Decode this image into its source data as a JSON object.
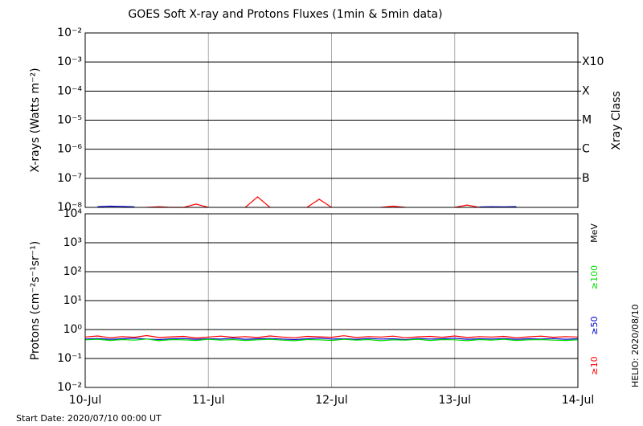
{
  "chart_data": [
    {
      "type": "line",
      "title": "GOES Soft X-ray and Protons Fluxes   (1min & 5min data)",
      "ylabel": "X-rays (Watts m⁻²)",
      "y2label": "Xray Class",
      "log_scale": true,
      "grid": true,
      "xlim": [
        0,
        4
      ],
      "xticks": [
        0,
        1,
        2,
        3,
        4
      ],
      "ylim": [
        1e-08,
        0.01
      ],
      "yticks": [
        {
          "value": 1e-08,
          "label": "10⁻⁸"
        },
        {
          "value": 1e-07,
          "label": "10⁻⁷"
        },
        {
          "value": 1e-06,
          "label": "10⁻⁶"
        },
        {
          "value": 1e-05,
          "label": "10⁻⁵"
        },
        {
          "value": 0.0001,
          "label": "10⁻⁴"
        },
        {
          "value": 0.001,
          "label": "10⁻³"
        },
        {
          "value": 0.01,
          "label": "10⁻²"
        }
      ],
      "y2lim": [
        1e-08,
        0.01
      ],
      "y2ticks": [
        {
          "value": 1e-07,
          "label": "B"
        },
        {
          "value": 1e-06,
          "label": "C"
        },
        {
          "value": 1e-05,
          "label": "M"
        },
        {
          "value": 0.0001,
          "label": "X"
        },
        {
          "value": 0.001,
          "label": "X10"
        }
      ],
      "x": [
        0,
        0.1,
        0.2,
        0.3,
        0.4,
        0.5,
        0.6,
        0.7,
        0.8,
        0.9,
        1,
        1.1,
        1.2,
        1.3,
        1.4,
        1.5,
        1.6,
        1.7,
        1.8,
        1.9,
        2,
        2.1,
        2.2,
        2.3,
        2.4,
        2.5,
        2.6,
        2.7,
        2.8,
        2.9,
        3,
        3.1,
        3.2,
        3.3,
        3.4,
        3.5,
        3.6,
        3.7,
        3.8,
        3.9,
        4
      ],
      "series": [
        {
          "color": "#ff0000",
          "values": [
            null,
            null,
            null,
            null,
            null,
            1e-08,
            1.05e-08,
            1e-08,
            1e-08,
            1.3e-08,
            1e-08,
            null,
            null,
            1e-08,
            2.3e-08,
            1e-08,
            null,
            null,
            1e-08,
            1.9e-08,
            1e-08,
            null,
            null,
            null,
            1e-08,
            1.1e-08,
            1e-08,
            null,
            null,
            null,
            1e-08,
            1.2e-08,
            1e-08,
            null,
            null,
            null,
            null,
            null,
            null,
            null,
            null
          ]
        },
        {
          "color": "#0000cc",
          "values": [
            null,
            1.05e-08,
            1.1e-08,
            1.08e-08,
            1.04e-08,
            null,
            null,
            null,
            null,
            null,
            null,
            null,
            null,
            null,
            null,
            null,
            null,
            null,
            null,
            null,
            null,
            null,
            null,
            null,
            null,
            null,
            null,
            null,
            null,
            null,
            null,
            null,
            1.03e-08,
            1.05e-08,
            1.04e-08,
            1.06e-08,
            null,
            null,
            null,
            null,
            null
          ]
        }
      ]
    },
    {
      "type": "line",
      "ylabel": "Protons (cm⁻²s⁻¹sr⁻¹)",
      "legend_title": "MeV",
      "log_scale": true,
      "grid": true,
      "xlim": [
        0,
        4
      ],
      "xticks": [
        {
          "value": 0,
          "label": "10-Jul"
        },
        {
          "value": 1,
          "label": "11-Jul"
        },
        {
          "value": 2,
          "label": "12-Jul"
        },
        {
          "value": 3,
          "label": "13-Jul"
        },
        {
          "value": 4,
          "label": "14-Jul"
        }
      ],
      "ylim": [
        0.01,
        10000
      ],
      "yticks": [
        {
          "value": 0.01,
          "label": "10⁻²"
        },
        {
          "value": 0.1,
          "label": "10⁻¹"
        },
        {
          "value": 1,
          "label": "10⁰"
        },
        {
          "value": 10,
          "label": "10¹"
        },
        {
          "value": 100,
          "label": "10²"
        },
        {
          "value": 1000,
          "label": "10³"
        },
        {
          "value": 10000,
          "label": "10⁴"
        }
      ],
      "reference_line": 10,
      "x": [
        0,
        0.1,
        0.2,
        0.3,
        0.4,
        0.5,
        0.6,
        0.7,
        0.8,
        0.9,
        1,
        1.1,
        1.2,
        1.3,
        1.4,
        1.5,
        1.6,
        1.7,
        1.8,
        1.9,
        2,
        2.1,
        2.2,
        2.3,
        2.4,
        2.5,
        2.6,
        2.7,
        2.8,
        2.9,
        3,
        3.1,
        3.2,
        3.3,
        3.4,
        3.5,
        3.6,
        3.7,
        3.8,
        3.9,
        4
      ],
      "series": [
        {
          "name": "≥10",
          "color": "#ff0000",
          "values": [
            0.55,
            0.6,
            0.52,
            0.57,
            0.54,
            0.62,
            0.53,
            0.56,
            0.58,
            0.51,
            0.55,
            0.59,
            0.54,
            0.57,
            0.53,
            0.6,
            0.55,
            0.52,
            0.58,
            0.56,
            0.54,
            0.61,
            0.53,
            0.57,
            0.55,
            0.59,
            0.52,
            0.56,
            0.58,
            0.54,
            0.6,
            0.53,
            0.57,
            0.55,
            0.58,
            0.52,
            0.56,
            0.59,
            0.54,
            0.57,
            0.55
          ]
        },
        {
          "name": "≥50",
          "color": "#0000cc",
          "values": [
            0.47,
            0.49,
            0.46,
            0.48,
            0.5,
            0.47,
            0.45,
            0.48,
            0.49,
            0.46,
            0.48,
            0.47,
            0.5,
            0.46,
            0.48,
            0.49,
            0.47,
            0.45,
            0.48,
            0.5,
            0.47,
            0.48,
            0.46,
            0.49,
            0.47,
            0.48,
            0.45,
            0.49,
            0.47,
            0.48,
            0.5,
            0.46,
            0.48,
            0.47,
            0.49,
            0.46,
            0.48,
            0.47,
            0.49,
            0.46,
            0.48
          ]
        },
        {
          "name": "≥100",
          "color": "#00dd00",
          "values": [
            0.44,
            0.46,
            0.42,
            0.45,
            0.43,
            0.47,
            0.41,
            0.45,
            0.44,
            0.42,
            0.46,
            0.43,
            0.45,
            0.42,
            0.44,
            0.46,
            0.43,
            0.41,
            0.45,
            0.44,
            0.42,
            0.46,
            0.43,
            0.45,
            0.41,
            0.44,
            0.43,
            0.46,
            0.42,
            0.45,
            0.44,
            0.41,
            0.45,
            0.43,
            0.46,
            0.42,
            0.44,
            0.45,
            0.43,
            0.42,
            0.44
          ]
        }
      ]
    }
  ],
  "footer": {
    "start_date": "Start Date: 2020/07/10 00:00 UT",
    "stamp": "HELIO: 2020/08/10"
  }
}
